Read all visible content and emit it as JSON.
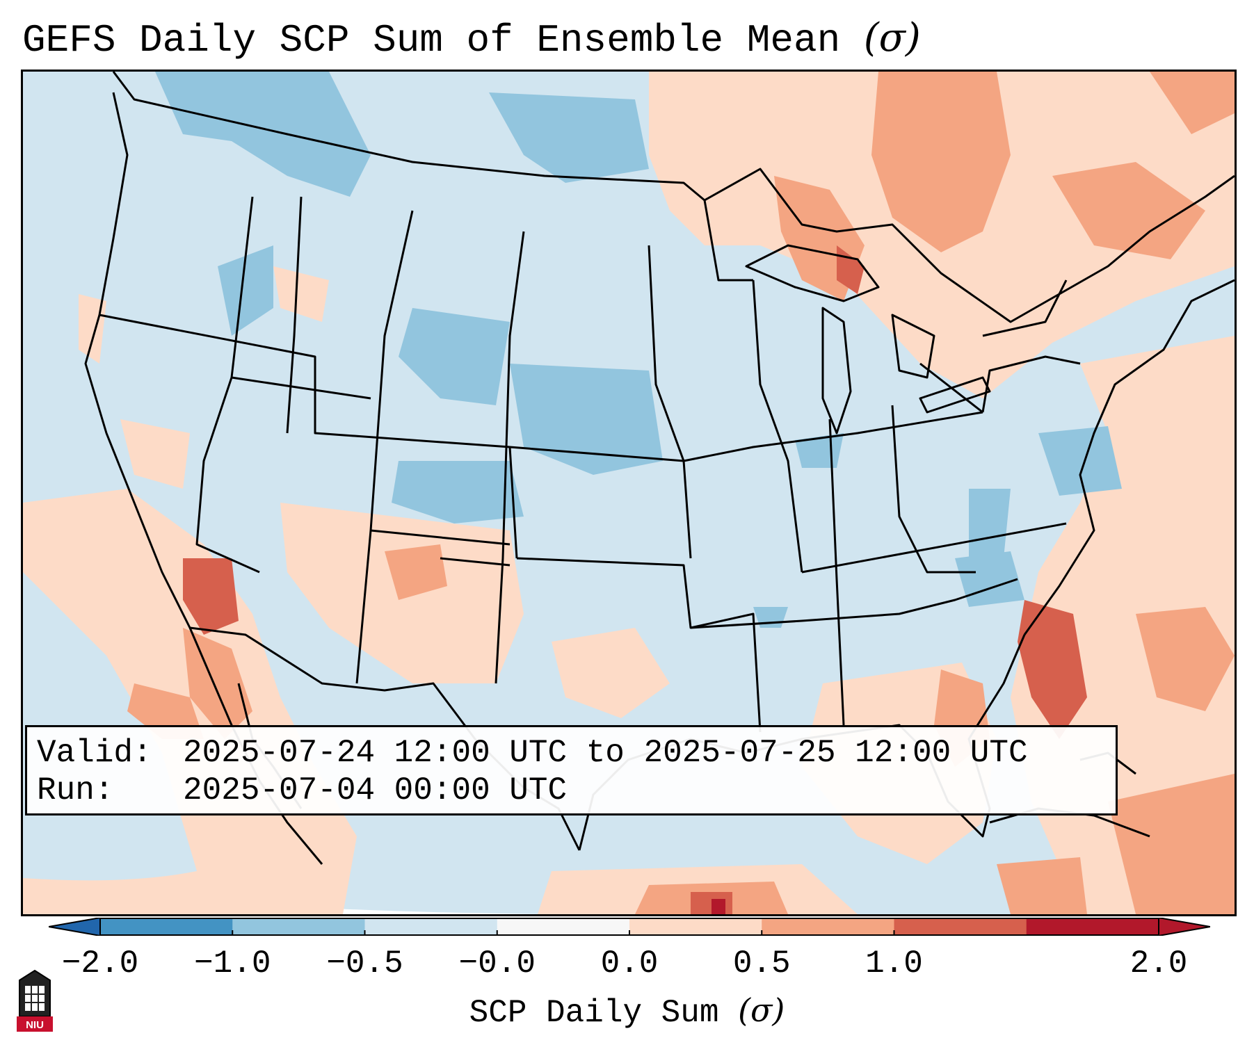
{
  "title": {
    "text": "GEFS Daily SCP Sum of Ensemble Mean",
    "symbol": "(σ)"
  },
  "info_box": {
    "valid_label": "Valid:",
    "valid_value": "2025-07-24 12:00 UTC to 2025-07-25 12:00 UTC",
    "run_label": "Run:",
    "run_value": "2025-07-04 00:00 UTC"
  },
  "colorbar": {
    "label": "SCP Daily Sum",
    "label_symbol": "(σ)",
    "ticks": [
      "−2.0",
      "−1.0",
      "−0.5",
      "−0.0",
      "0.0",
      "0.5",
      "1.0",
      "2.0"
    ],
    "colors": [
      "#4393c3",
      "#92c5de",
      "#d1e5f0",
      "#f7f7f7",
      "#fddbc7",
      "#f4a582",
      "#d6604d",
      "#b2182b"
    ],
    "extend_low_color": "#2166ac",
    "extend_high_color": "#b2182b"
  },
  "logo": {
    "text": "NIU",
    "color": "#c8102e"
  },
  "map": {
    "region": "Contiguous United States and surroundings",
    "base_color": "#d1e5f0",
    "outline_color": "#000000"
  }
}
